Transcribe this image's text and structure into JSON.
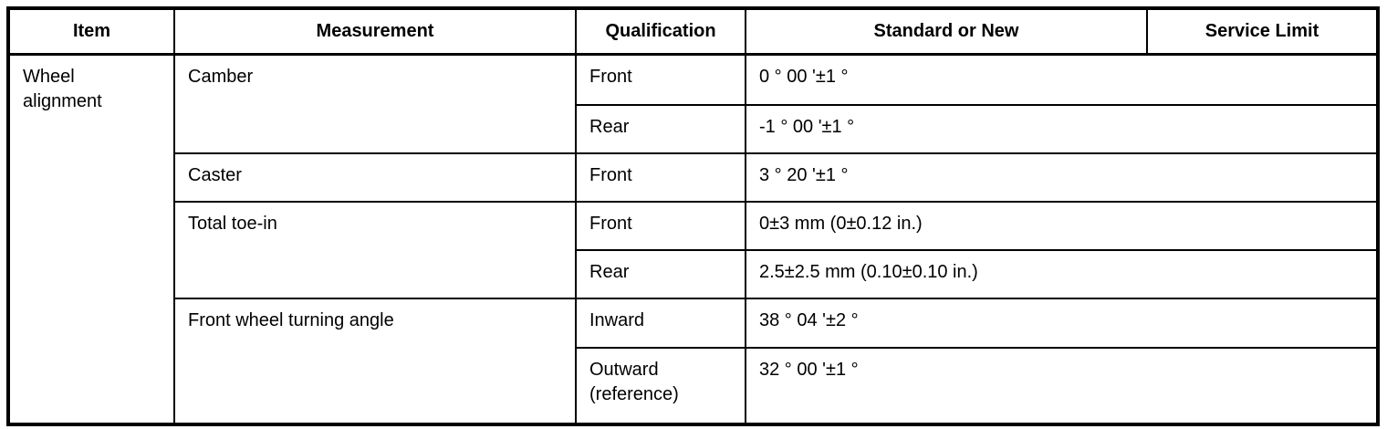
{
  "table": {
    "columns": [
      "Item",
      "Measurement",
      "Qualification",
      "Standard or New",
      "Service Limit"
    ],
    "item_label": "Wheel alignment",
    "groups": [
      {
        "measurement": "Camber",
        "entries": [
          {
            "qualification": "Front",
            "standard_or_new": "0 ° 00 '±1 °"
          },
          {
            "qualification": "Rear",
            "standard_or_new": "-1 ° 00 '±1 °"
          }
        ]
      },
      {
        "measurement": "Caster",
        "entries": [
          {
            "qualification": "Front",
            "standard_or_new": "3 ° 20 '±1 °"
          }
        ]
      },
      {
        "measurement": "Total toe-in",
        "entries": [
          {
            "qualification": "Front",
            "standard_or_new": "0±3 mm (0±0.12 in.)"
          },
          {
            "qualification": "Rear",
            "standard_or_new": "2.5±2.5 mm (0.10±0.10 in.)"
          }
        ]
      },
      {
        "measurement": "Front wheel turning angle",
        "entries": [
          {
            "qualification": "Inward",
            "standard_or_new": "38 ° 04 '±2 °"
          },
          {
            "qualification": "Outward (reference)",
            "standard_or_new": "32 ° 00 '±1 °"
          }
        ]
      }
    ]
  },
  "colors": {
    "border": "#000000",
    "text": "#000000",
    "background": "#ffffff"
  }
}
